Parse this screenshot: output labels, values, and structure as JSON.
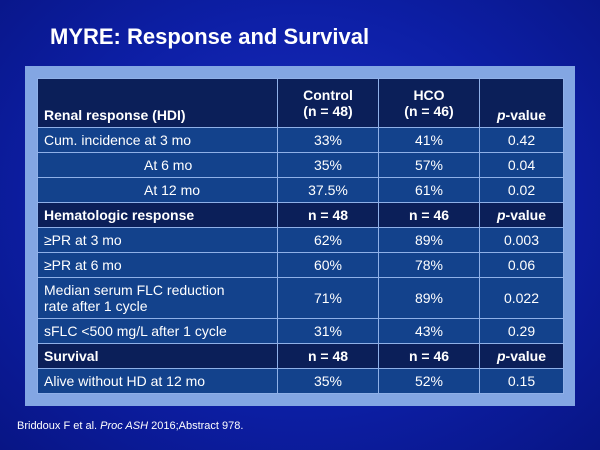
{
  "slide": {
    "title": "MYRE: Response and Survival"
  },
  "table": {
    "header": {
      "label": "Renal response (HDI)",
      "control_line1": "Control",
      "control_line2": "(n = 48)",
      "hco_line1": "HCO",
      "hco_line2": "(n = 46)",
      "pvalue_italic": "p",
      "pvalue_rest": "-value"
    },
    "renal_rows": [
      {
        "label": "Cum. incidence at 3 mo",
        "control": "33%",
        "hco": "41%",
        "p": "0.42"
      },
      {
        "label": "At 6 mo",
        "control": "35%",
        "hco": "57%",
        "p": "0.04"
      },
      {
        "label": "At 12 mo",
        "control": "37.5%",
        "hco": "61%",
        "p": "0.02"
      }
    ],
    "hematologic_header": {
      "label": "Hematologic response",
      "control": "n = 48",
      "hco": "n = 46",
      "pvalue_italic": "p",
      "pvalue_rest": "-value"
    },
    "hematologic_rows": [
      {
        "label": "≥PR at 3 mo",
        "control": "62%",
        "hco": "89%",
        "p": "0.003"
      },
      {
        "label": "≥PR at 6 mo",
        "control": "60%",
        "hco": "78%",
        "p": "0.06"
      },
      {
        "label_line1": "Median serum FLC reduction",
        "label_line2": "rate after 1 cycle",
        "control": "71%",
        "hco": "89%",
        "p": "0.022"
      },
      {
        "label": "sFLC <500 mg/L after 1 cycle",
        "control": "31%",
        "hco": "43%",
        "p": "0.29"
      }
    ],
    "survival_header": {
      "label": "Survival",
      "control": "n = 48",
      "hco": "n = 46",
      "pvalue_italic": "p",
      "pvalue_rest": "-value"
    },
    "survival_rows": [
      {
        "label": "Alive without HD at 12 mo",
        "control": "35%",
        "hco": "52%",
        "p": "0.15"
      }
    ]
  },
  "citation": {
    "before": "Briddoux F et al. ",
    "journal": "Proc ASH",
    "after": " 2016;Abstract 978."
  },
  "colors": {
    "background": "#0d1fa6",
    "table_frame": "#83a6e3",
    "header_row": "#0b1f59",
    "body_row": "#13428c",
    "text": "#ffffff"
  }
}
